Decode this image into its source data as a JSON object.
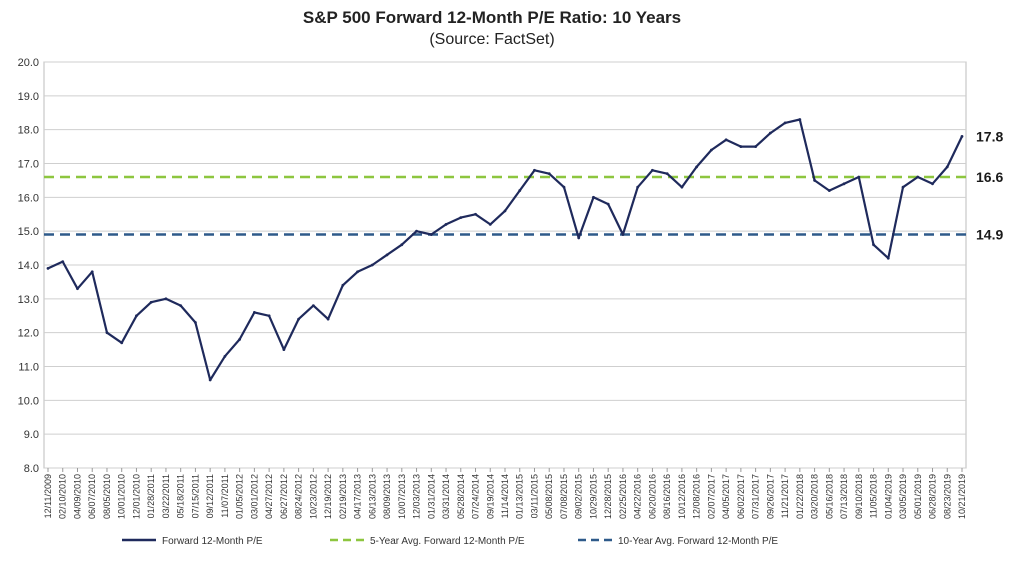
{
  "chart_data": {
    "type": "line",
    "title": "S&P 500 Forward 12-Month P/E Ratio: 10 Years",
    "subtitle": "(Source: FactSet)",
    "xlabel": "",
    "ylabel": "",
    "ylim": [
      8.0,
      20.0
    ],
    "yticks": [
      "20.0",
      "19.0",
      "18.0",
      "17.0",
      "16.0",
      "15.0",
      "14.0",
      "13.0",
      "12.0",
      "11.0",
      "10.0",
      "9.0",
      "8.0"
    ],
    "xticks": [
      "12/11/2009",
      "02/10/2010",
      "04/09/2010",
      "06/07/2010",
      "08/05/2010",
      "10/01/2010",
      "12/01/2010",
      "01/28/2011",
      "03/22/2011",
      "05/18/2011",
      "07/15/2011",
      "09/12/2011",
      "11/07/2011",
      "01/05/2012",
      "03/01/2012",
      "04/27/2012",
      "06/27/2012",
      "08/24/2012",
      "10/23/2012",
      "12/19/2012",
      "02/19/2013",
      "04/17/2013",
      "06/13/2013",
      "08/09/2013",
      "10/07/2013",
      "12/03/2013",
      "01/31/2014",
      "03/31/2014",
      "05/28/2014",
      "07/24/2014",
      "09/19/2014",
      "11/14/2014",
      "01/13/2015",
      "03/11/2015",
      "05/08/2015",
      "07/08/2015",
      "09/02/2015",
      "10/29/2015",
      "12/28/2015",
      "02/25/2016",
      "04/22/2016",
      "06/20/2016",
      "08/16/2016",
      "10/12/2016",
      "12/08/2016",
      "02/07/2017",
      "04/05/2017",
      "06/02/2017",
      "07/31/2017",
      "09/26/2017",
      "11/21/2017",
      "01/22/2018",
      "03/20/2018",
      "05/16/2018",
      "07/13/2018",
      "09/10/2018",
      "11/05/2018",
      "01/04/2019",
      "03/05/2019",
      "05/01/2019",
      "06/28/2019",
      "08/23/2019",
      "10/21/2019"
    ],
    "grid": true,
    "legend_placement": "bottom",
    "series": [
      {
        "name": "Forward 12-Month P/E",
        "color": "#1f2a5c",
        "x": [
          "12/11/2009",
          "02/10/2010",
          "04/09/2010",
          "06/07/2010",
          "08/05/2010",
          "10/01/2010",
          "12/01/2010",
          "01/28/2011",
          "03/22/2011",
          "05/18/2011",
          "07/15/2011",
          "09/12/2011",
          "11/07/2011",
          "01/05/2012",
          "03/01/2012",
          "04/27/2012",
          "06/27/2012",
          "08/24/2012",
          "10/23/2012",
          "12/19/2012",
          "02/19/2013",
          "04/17/2013",
          "06/13/2013",
          "08/09/2013",
          "10/07/2013",
          "12/03/2013",
          "01/31/2014",
          "03/31/2014",
          "05/28/2014",
          "07/24/2014",
          "09/19/2014",
          "11/14/2014",
          "01/13/2015",
          "03/11/2015",
          "05/08/2015",
          "07/08/2015",
          "09/02/2015",
          "10/29/2015",
          "12/28/2015",
          "02/25/2016",
          "04/22/2016",
          "06/20/2016",
          "08/16/2016",
          "10/12/2016",
          "12/08/2016",
          "02/07/2017",
          "04/05/2017",
          "06/02/2017",
          "07/31/2017",
          "09/26/2017",
          "11/21/2017",
          "01/22/2018",
          "03/20/2018",
          "05/16/2018",
          "07/13/2018",
          "09/10/2018",
          "11/05/2018",
          "01/04/2019",
          "03/05/2019",
          "05/01/2019",
          "06/28/2019",
          "08/23/2019",
          "10/21/2019"
        ],
        "values": [
          13.9,
          14.1,
          13.3,
          13.8,
          12.0,
          11.7,
          12.5,
          12.9,
          13.0,
          12.8,
          12.3,
          10.6,
          11.3,
          11.8,
          12.6,
          12.5,
          11.5,
          12.4,
          12.8,
          12.4,
          13.4,
          13.8,
          14.0,
          14.3,
          14.6,
          15.0,
          14.9,
          15.2,
          15.4,
          15.5,
          15.2,
          15.6,
          16.2,
          16.8,
          16.7,
          16.3,
          14.8,
          16.0,
          15.8,
          14.9,
          16.3,
          16.8,
          16.7,
          16.3,
          16.9,
          17.4,
          17.7,
          17.5,
          17.5,
          17.9,
          18.2,
          18.3,
          16.5,
          16.2,
          16.4,
          16.6,
          14.6,
          14.2,
          16.3,
          16.6,
          16.4,
          16.9,
          17.8
        ]
      },
      {
        "name": "5-Year Avg. Forward 12-Month P/E",
        "color": "#8dc63f",
        "dashed": true,
        "value": 16.6
      },
      {
        "name": "10-Year Avg. Forward 12-Month P/E",
        "color": "#2e5a8a",
        "dashed": true,
        "value": 14.9
      }
    ],
    "right_labels": [
      "17.8",
      "16.6",
      "14.9"
    ]
  }
}
